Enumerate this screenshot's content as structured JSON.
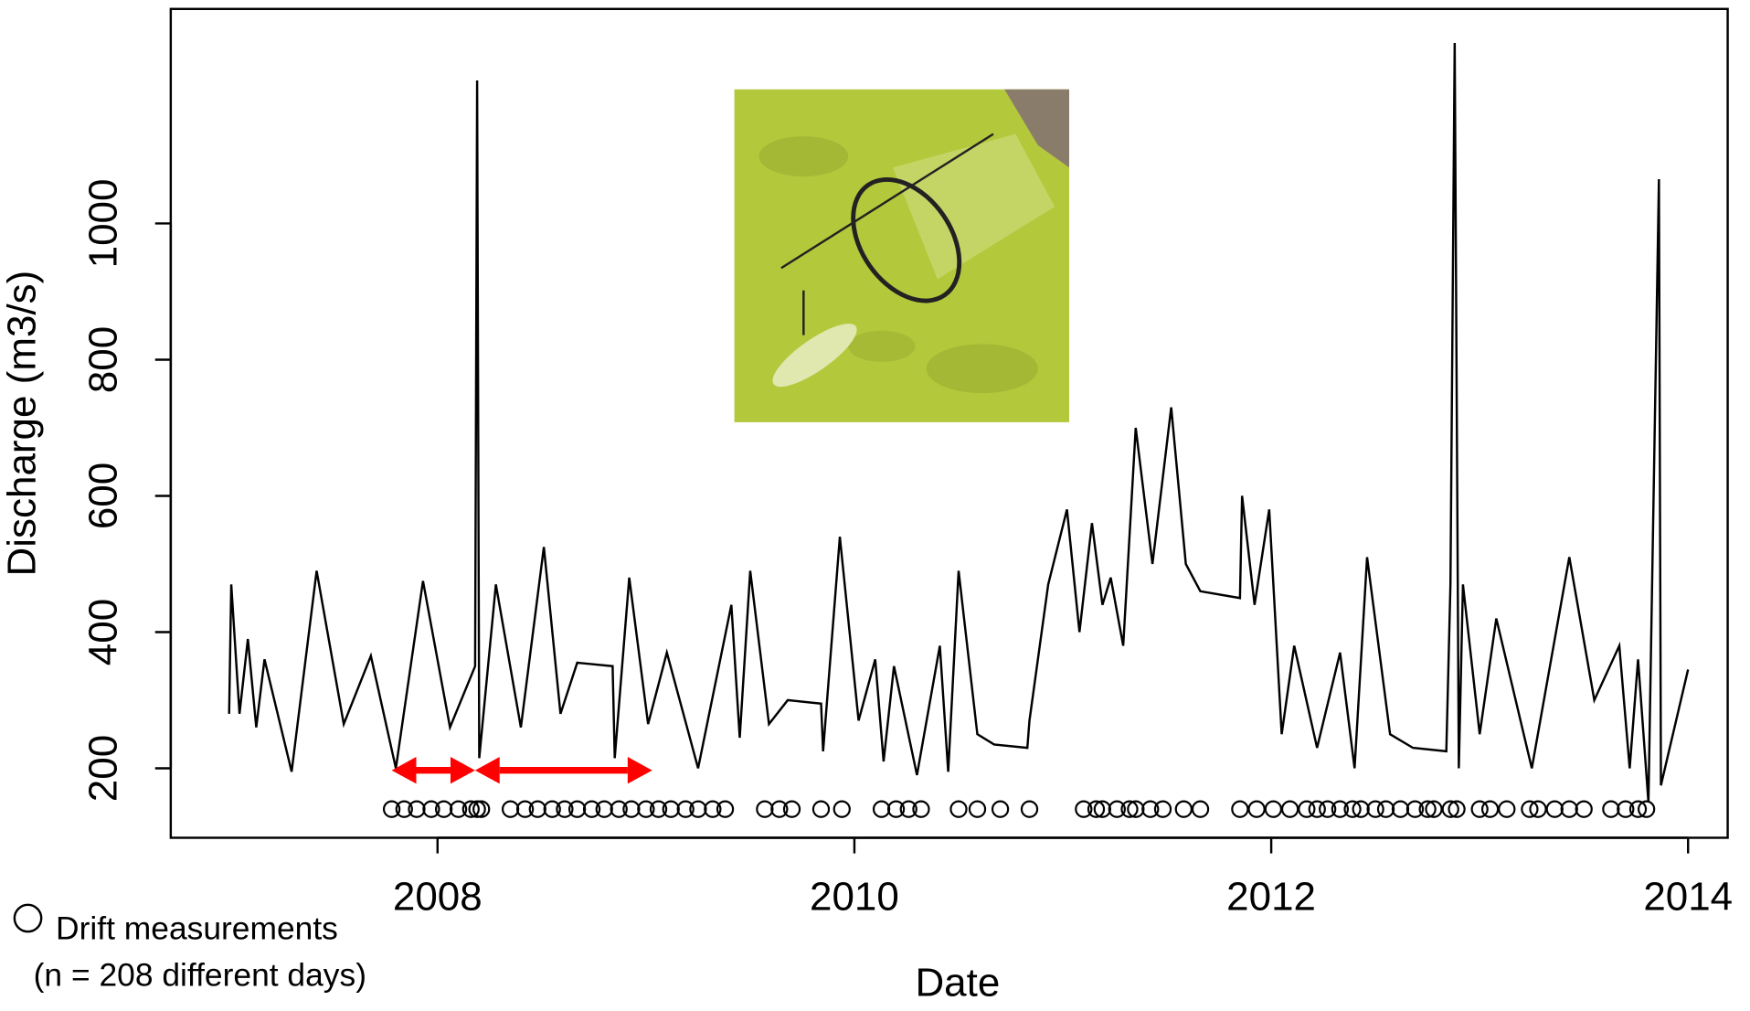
{
  "chart_data": {
    "type": "line",
    "xlabel": "Date",
    "ylabel": "Discharge (m3/s)",
    "xlim": [
      2006.72,
      2014.19
    ],
    "ylim": [
      98,
      1315
    ],
    "xticks": [
      2008,
      2010,
      2012,
      2014
    ],
    "yticks": [
      200,
      400,
      600,
      800,
      1000
    ],
    "grid": false,
    "legend_position": "bottom-left",
    "legend_note": "(n = 208 different days)",
    "series": [
      {
        "type": "line",
        "color": "#000000",
        "x": [
          2007.0,
          2007.01,
          2007.05,
          2007.09,
          2007.13,
          2007.17,
          2007.3,
          2007.42,
          2007.55,
          2007.68,
          2007.8,
          2007.93,
          2008.06,
          2008.18,
          2008.19,
          2008.2,
          2008.28,
          2008.4,
          2008.51,
          2008.59,
          2008.67,
          2008.84,
          2008.85,
          2008.92,
          2009.01,
          2009.1,
          2009.25,
          2009.41,
          2009.45,
          2009.5,
          2009.59,
          2009.68,
          2009.84,
          2009.85,
          2009.93,
          2010.02,
          2010.1,
          2010.14,
          2010.19,
          2010.3,
          2010.41,
          2010.45,
          2010.5,
          2010.59,
          2010.67,
          2010.83,
          2010.84,
          2010.93,
          2011.02,
          2011.08,
          2011.14,
          2011.19,
          2011.23,
          2011.29,
          2011.35,
          2011.43,
          2011.52,
          2011.59,
          2011.66,
          2011.85,
          2011.86,
          2011.92,
          2011.99,
          2012.05,
          2012.11,
          2012.22,
          2012.33,
          2012.4,
          2012.46,
          2012.57,
          2012.68,
          2012.84,
          2012.86,
          2012.88,
          2012.9,
          2012.92,
          2013.0,
          2013.08,
          2013.25,
          2013.43,
          2013.55,
          2013.67,
          2013.72,
          2013.76,
          2013.81,
          2013.86,
          2013.87,
          2014.0
        ],
        "values": [
          280,
          470,
          280,
          390,
          260,
          360,
          195,
          490,
          265,
          365,
          200,
          475,
          260,
          350,
          1210,
          215,
          470,
          260,
          525,
          280,
          355,
          350,
          215,
          480,
          265,
          370,
          200,
          440,
          245,
          490,
          265,
          300,
          295,
          225,
          540,
          270,
          360,
          210,
          350,
          190,
          380,
          195,
          490,
          250,
          235,
          230,
          270,
          470,
          580,
          400,
          560,
          440,
          480,
          380,
          700,
          500,
          730,
          500,
          460,
          450,
          600,
          440,
          580,
          250,
          380,
          230,
          370,
          200,
          510,
          250,
          230,
          225,
          470,
          1265,
          200,
          470,
          250,
          420,
          200,
          510,
          300,
          380,
          200,
          360,
          150,
          1065,
          175,
          345
        ]
      },
      {
        "type": "scatter",
        "name": "Drift measurements",
        "color": "#000000",
        "x": [
          2007.78,
          2007.84,
          2007.9,
          2007.97,
          2008.03,
          2008.1,
          2008.16,
          2008.19,
          2008.21,
          2008.35,
          2008.42,
          2008.48,
          2008.55,
          2008.61,
          2008.67,
          2008.74,
          2008.8,
          2008.87,
          2008.93,
          2009.0,
          2009.06,
          2009.12,
          2009.19,
          2009.25,
          2009.32,
          2009.38,
          2009.57,
          2009.64,
          2009.7,
          2009.84,
          2009.94,
          2010.13,
          2010.2,
          2010.26,
          2010.32,
          2010.5,
          2010.59,
          2010.7,
          2010.84,
          2011.1,
          2011.16,
          2011.19,
          2011.26,
          2011.32,
          2011.35,
          2011.42,
          2011.48,
          2011.58,
          2011.66,
          2011.85,
          2011.93,
          2012.01,
          2012.09,
          2012.17,
          2012.22,
          2012.27,
          2012.33,
          2012.39,
          2012.43,
          2012.5,
          2012.55,
          2012.62,
          2012.69,
          2012.75,
          2012.78,
          2012.86,
          2012.89,
          2013.0,
          2013.05,
          2013.13,
          2013.24,
          2013.28,
          2013.36,
          2013.43,
          2013.5,
          2013.63,
          2013.7,
          2013.76,
          2013.8
        ],
        "values": [
          140,
          140,
          140,
          140,
          140,
          140,
          140,
          140,
          140,
          140,
          140,
          140,
          140,
          140,
          140,
          140,
          140,
          140,
          140,
          140,
          140,
          140,
          140,
          140,
          140,
          140,
          140,
          140,
          140,
          140,
          140,
          140,
          140,
          140,
          140,
          140,
          140,
          140,
          140,
          140,
          140,
          140,
          140,
          140,
          140,
          140,
          140,
          140,
          140,
          140,
          140,
          140,
          140,
          140,
          140,
          140,
          140,
          140,
          140,
          140,
          140,
          140,
          140,
          140,
          140,
          140,
          140,
          140,
          140,
          140,
          140,
          140,
          140,
          140,
          140,
          140,
          140,
          140,
          140
        ]
      }
    ],
    "spans": [
      {
        "x": [
          2007.78,
          2008.18
        ],
        "value": 197,
        "color": "#ff0000"
      },
      {
        "x": [
          2008.18,
          2009.03
        ],
        "value": 197,
        "color": "#ff0000"
      }
    ]
  }
}
